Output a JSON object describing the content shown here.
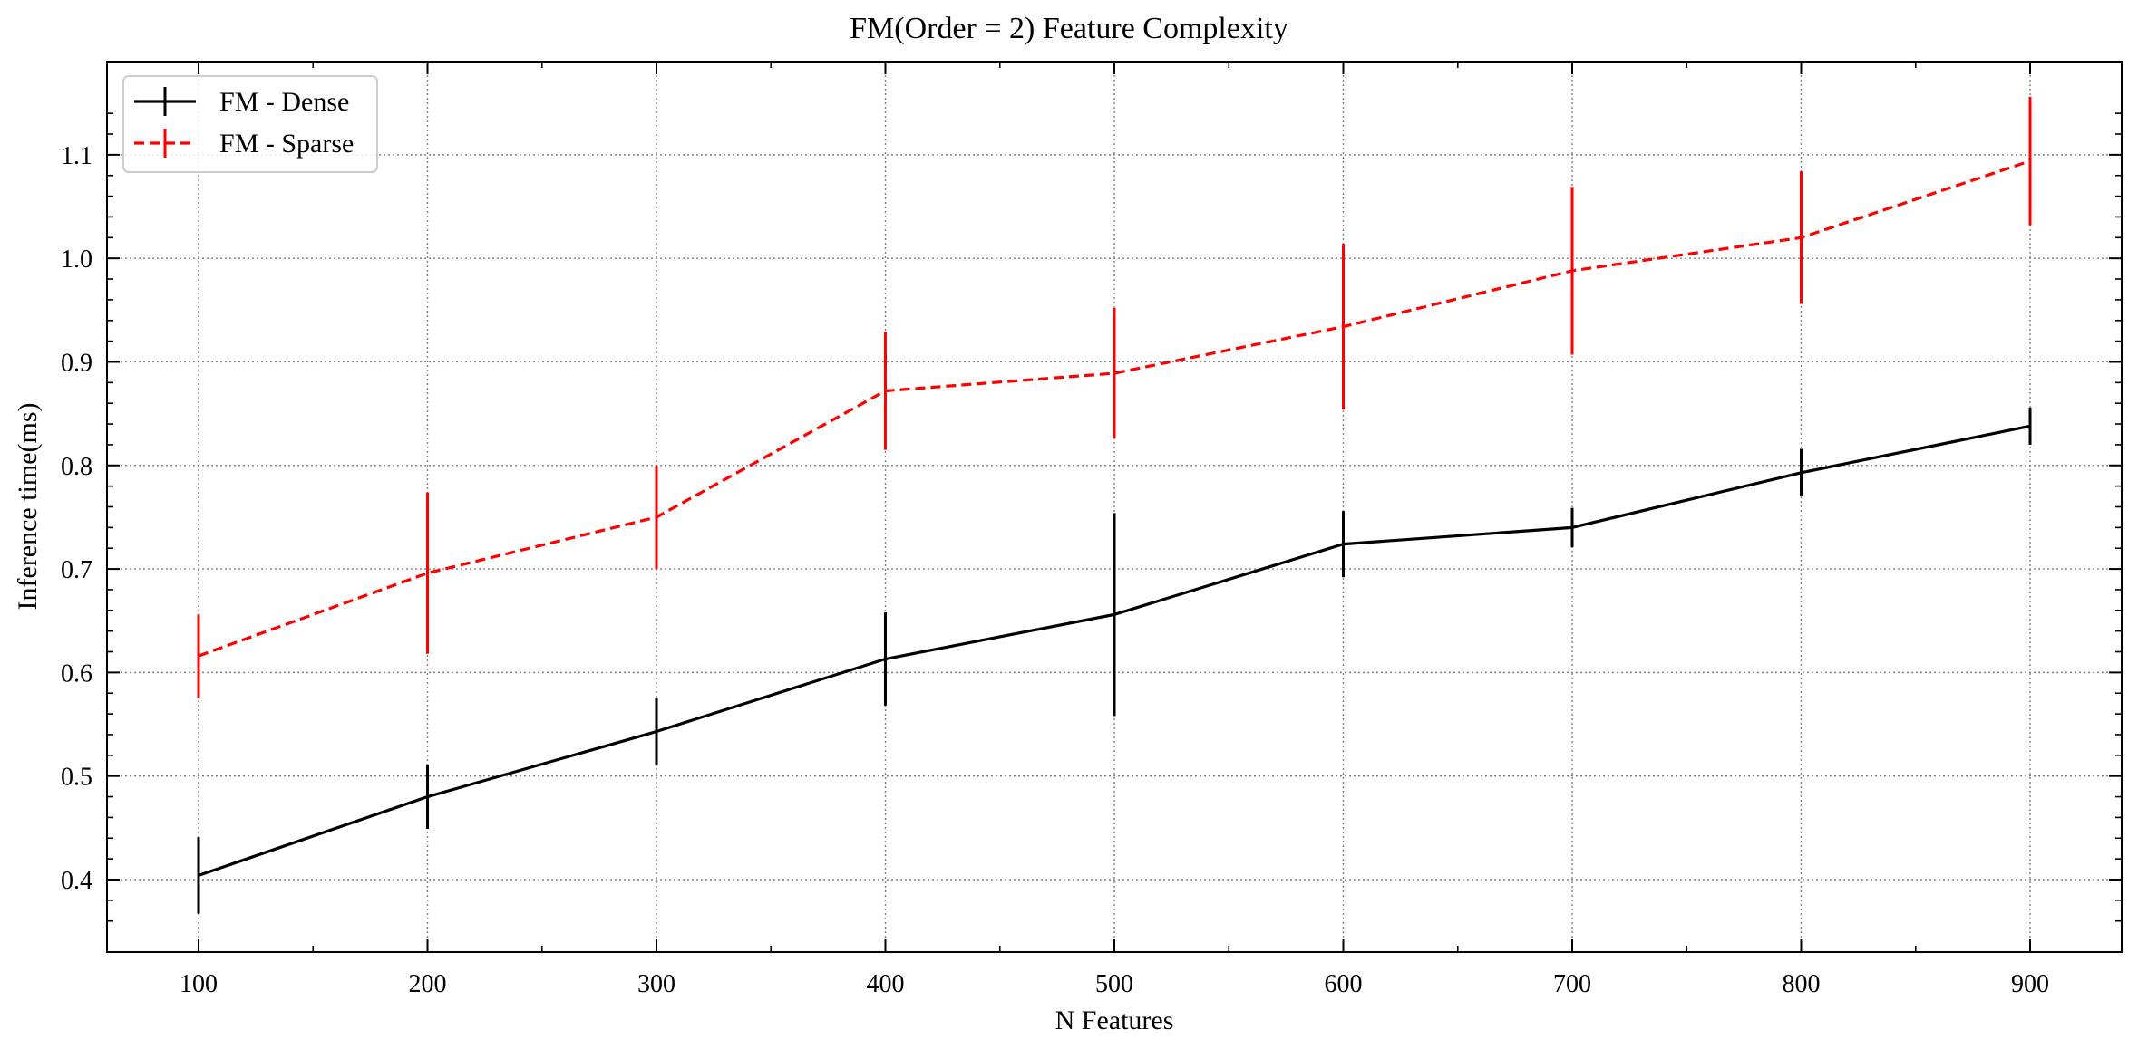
{
  "chart_data": {
    "type": "line",
    "title": "FM(Order = 2) Feature Complexity",
    "xlabel": "N Features",
    "ylabel": "Inference time(ms)",
    "x": [
      100,
      200,
      300,
      400,
      500,
      600,
      700,
      800,
      900
    ],
    "xlim": [
      60,
      940
    ],
    "ylim": [
      0.33,
      1.19
    ],
    "xticks": [
      100,
      200,
      300,
      400,
      500,
      600,
      700,
      800,
      900
    ],
    "yticks": [
      0.4,
      0.5,
      0.6,
      0.7,
      0.8,
      0.9,
      1.0,
      1.1
    ],
    "ytick_labels": [
      "0.4",
      "0.5",
      "0.6",
      "0.7",
      "0.8",
      "0.9",
      "1.0",
      "1.1"
    ],
    "grid": true,
    "legend_position": "top-left",
    "series": [
      {
        "name": "FM - Dense",
        "color": "#000000",
        "linestyle": "solid",
        "values": [
          0.404,
          0.48,
          0.543,
          0.613,
          0.656,
          0.724,
          0.74,
          0.793,
          0.838
        ],
        "error": [
          0.037,
          0.031,
          0.033,
          0.045,
          0.098,
          0.032,
          0.019,
          0.023,
          0.018
        ]
      },
      {
        "name": "FM - Sparse",
        "color": "#ff0000",
        "linestyle": "dashed",
        "values": [
          0.616,
          0.696,
          0.75,
          0.872,
          0.889,
          0.934,
          0.988,
          1.02,
          1.094
        ],
        "error": [
          0.04,
          0.078,
          0.05,
          0.057,
          0.063,
          0.08,
          0.081,
          0.064,
          0.062
        ]
      }
    ]
  }
}
